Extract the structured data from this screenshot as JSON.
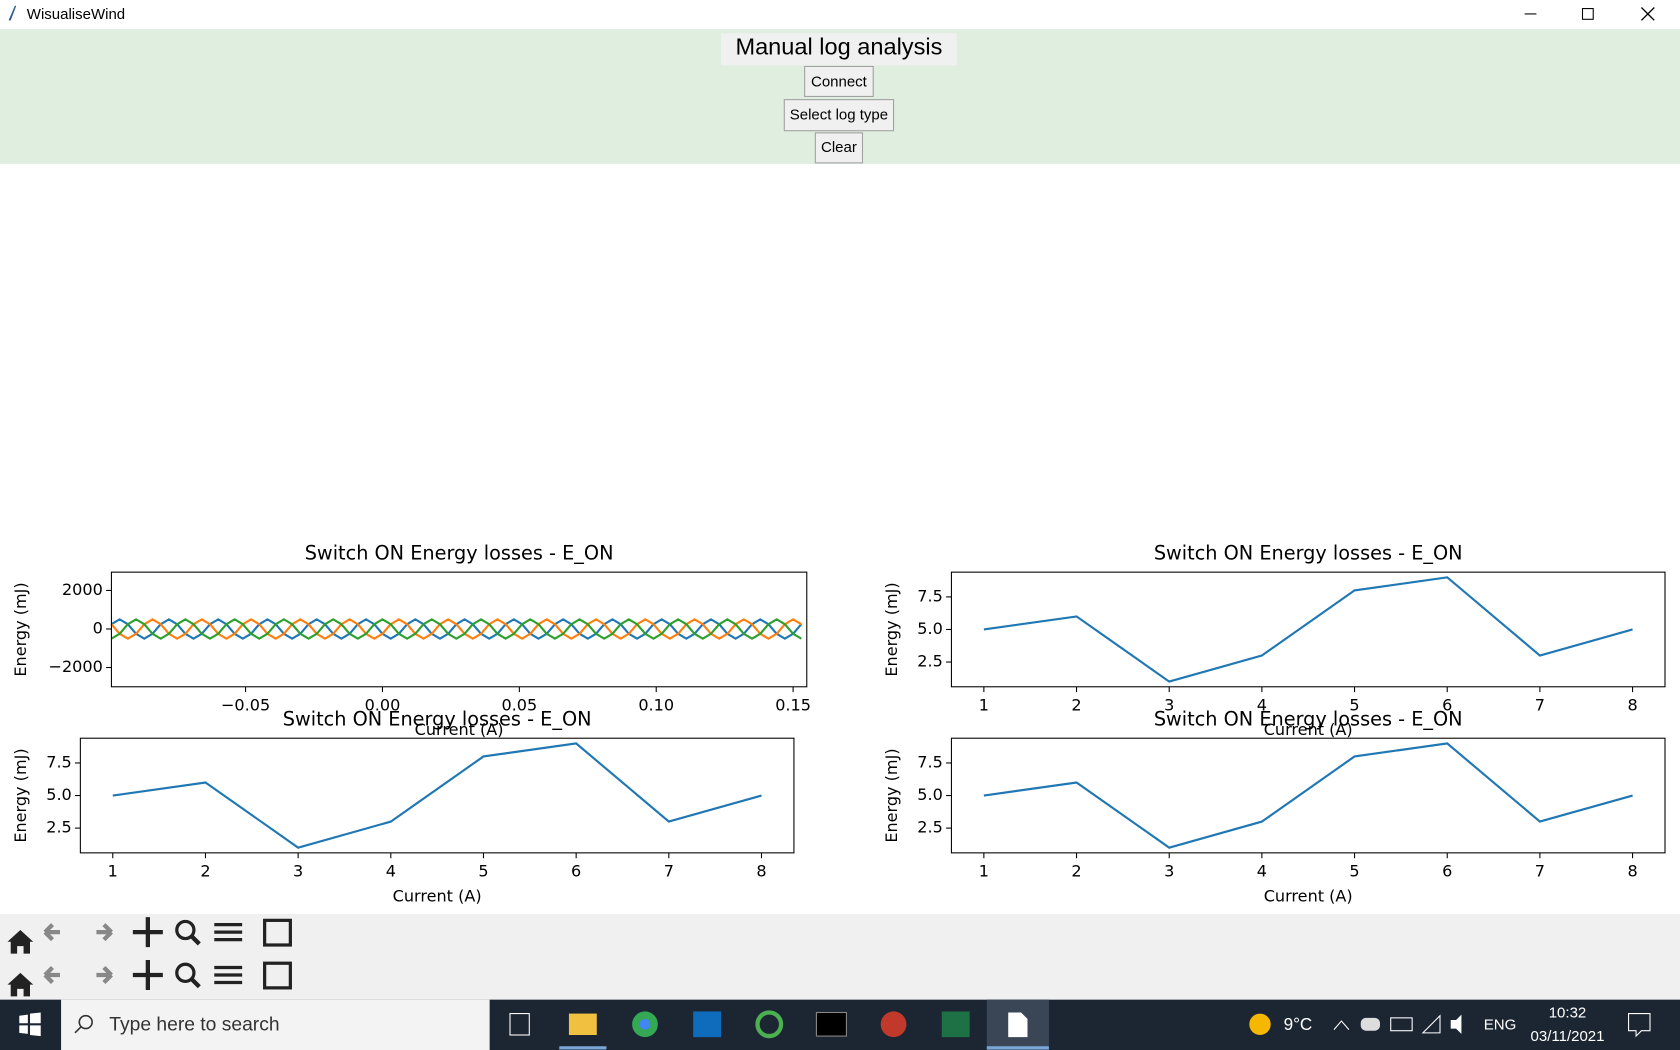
{
  "window": {
    "title": "WisualiseWind"
  },
  "header": {
    "title": "Manual log analysis",
    "buttons": [
      "Connect",
      "Select log type",
      "Clear"
    ]
  },
  "charts": [
    {
      "type": "line",
      "title": "Switch ON Energy losses - E_ON",
      "x_label": "Current (A)",
      "y_label": "Energy (mJ)",
      "x": [
        -0.099,
        -0.096,
        -0.093,
        -0.09,
        -0.087,
        -0.084,
        -0.081,
        -0.078,
        -0.075,
        -0.072,
        -0.069,
        -0.066,
        -0.063,
        -0.06,
        -0.057,
        -0.054,
        -0.051,
        -0.048,
        -0.045,
        -0.042,
        -0.039,
        -0.036,
        -0.033,
        -0.03,
        -0.027,
        -0.024,
        -0.021,
        -0.018,
        -0.015,
        -0.012,
        -0.009,
        -0.006,
        -0.003,
        0,
        0.003,
        0.006,
        0.009,
        0.012,
        0.015,
        0.018,
        0.021,
        0.024,
        0.027,
        0.03,
        0.033,
        0.036,
        0.039,
        0.042,
        0.045,
        0.048,
        0.051,
        0.054,
        0.057,
        0.06,
        0.063,
        0.066,
        0.069,
        0.072,
        0.075,
        0.078,
        0.081,
        0.084,
        0.087,
        0.09,
        0.093,
        0.096,
        0.099,
        0.102,
        0.105,
        0.108,
        0.111,
        0.114,
        0.117,
        0.12,
        0.123,
        0.126,
        0.129,
        0.132,
        0.135,
        0.138,
        0.141,
        0.144,
        0.147,
        0.15,
        0.153
      ],
      "series": [
        {
          "color": "#1f77b4",
          "values": [
            250,
            500,
            250,
            -250,
            -500,
            -250,
            250,
            500,
            250,
            -250,
            -500,
            -250,
            250,
            500,
            250,
            -250,
            -500,
            -250,
            250,
            500,
            250,
            -250,
            -500,
            -250,
            250,
            500,
            250,
            -250,
            -500,
            -250,
            250,
            500,
            250,
            -250,
            -500,
            -250,
            250,
            500,
            250,
            -250,
            -500,
            -250,
            250,
            500,
            250,
            -250,
            -500,
            -250,
            250,
            500,
            250,
            -250,
            -500,
            -250,
            250,
            500,
            250,
            -250,
            -500,
            -250,
            250,
            500,
            250,
            -250,
            -500,
            -250,
            250,
            500,
            250,
            -250,
            -500,
            -250,
            250,
            500,
            250,
            -250,
            -500,
            -250,
            250,
            500,
            250,
            -250,
            -500,
            -250,
            250
          ]
        },
        {
          "color": "#ff7f0e",
          "values": [
            250,
            -250,
            -500,
            -250,
            250,
            500,
            250,
            -250,
            -500,
            -250,
            250,
            500,
            250,
            -250,
            -500,
            -250,
            250,
            500,
            250,
            -250,
            -500,
            -250,
            250,
            500,
            250,
            -250,
            -500,
            -250,
            250,
            500,
            250,
            -250,
            -500,
            -250,
            250,
            500,
            250,
            -250,
            -500,
            -250,
            250,
            500,
            250,
            -250,
            -500,
            -250,
            250,
            500,
            250,
            -250,
            -500,
            -250,
            250,
            500,
            250,
            -250,
            -500,
            -250,
            250,
            500,
            250,
            -250,
            -500,
            -250,
            250,
            500,
            250,
            -250,
            -500,
            -250,
            250,
            500,
            250,
            -250,
            -500,
            -250,
            250,
            500,
            250,
            -250,
            -500,
            -250,
            250,
            500,
            250
          ]
        },
        {
          "color": "#2ca02c",
          "values": [
            -500,
            -250,
            250,
            500,
            250,
            -250,
            -500,
            -250,
            250,
            500,
            250,
            -250,
            -500,
            -250,
            250,
            500,
            250,
            -250,
            -500,
            -250,
            250,
            500,
            250,
            -250,
            -500,
            -250,
            250,
            500,
            250,
            -250,
            -500,
            -250,
            250,
            500,
            250,
            -250,
            -500,
            -250,
            250,
            500,
            250,
            -250,
            -500,
            -250,
            250,
            500,
            250,
            -250,
            -500,
            -250,
            250,
            500,
            250,
            -250,
            -500,
            -250,
            250,
            500,
            250,
            -250,
            -500,
            -250,
            250,
            500,
            250,
            -250,
            -500,
            -250,
            250,
            500,
            250,
            -250,
            -500,
            -250,
            250,
            500,
            250,
            -250,
            -500,
            -250,
            250,
            500,
            250,
            -250,
            -500
          ]
        }
      ],
      "xlim": [
        -0.099,
        0.155
      ],
      "ylim": [
        -3000,
        2950
      ],
      "xticks": [
        {
          "value": -0.05,
          "label": "−0.05"
        },
        {
          "value": 0,
          "label": "0.00"
        },
        0.05,
        {
          "value": 0.1,
          "label": "0.10"
        },
        0.15
      ],
      "yticks": [
        {
          "value": -2000,
          "label": "−2000"
        },
        0,
        2000
      ]
    },
    {
      "type": "line",
      "title": "Switch ON Energy losses - E_ON",
      "x_label": "Current (A)",
      "y_label": "Energy (mJ)",
      "x": [
        1,
        2,
        3,
        4,
        5,
        6,
        7,
        8
      ],
      "values": [
        5,
        6,
        1,
        3,
        8,
        9,
        3,
        5
      ],
      "color": "#1f77b4",
      "xlim": [
        0.65,
        8.35
      ],
      "ylim": [
        0.6,
        9.4
      ],
      "xticks": [
        1,
        2,
        3,
        4,
        5,
        6,
        7,
        8
      ],
      "yticks": [
        2.5,
        {
          "value": 5,
          "label": "5.0"
        },
        7.5
      ]
    },
    {
      "type": "line",
      "title": "Switch ON Energy losses - E_ON",
      "x_label": "Current (A)",
      "y_label": "Energy (mJ)",
      "x": [
        1,
        2,
        3,
        4,
        5,
        6,
        7,
        8
      ],
      "values": [
        5,
        6,
        1,
        3,
        8,
        9,
        3,
        5
      ],
      "color": "#1f77b4",
      "xlim": [
        0.65,
        8.35
      ],
      "ylim": [
        0.6,
        9.4
      ],
      "xticks": [
        1,
        2,
        3,
        4,
        5,
        6,
        7,
        8
      ],
      "yticks": [
        2.5,
        {
          "value": 5,
          "label": "5.0"
        },
        7.5
      ]
    },
    {
      "type": "line",
      "title": "Switch ON Energy losses - E_ON",
      "x_label": "Current (A)",
      "y_label": "Energy (mJ)",
      "x": [
        1,
        2,
        3,
        4,
        5,
        6,
        7,
        8
      ],
      "values": [
        5,
        6,
        1,
        3,
        8,
        9,
        3,
        5
      ],
      "color": "#1f77b4",
      "xlim": [
        0.65,
        8.35
      ],
      "ylim": [
        0.6,
        9.4
      ],
      "xticks": [
        1,
        2,
        3,
        4,
        5,
        6,
        7,
        8
      ],
      "yticks": [
        2.5,
        {
          "value": 5,
          "label": "5.0"
        },
        7.5
      ]
    }
  ],
  "taskbar": {
    "search_placeholder": "Type here to search",
    "weather": "9°C",
    "language": "ENG",
    "time": "10:32",
    "date": "03/11/2021"
  }
}
